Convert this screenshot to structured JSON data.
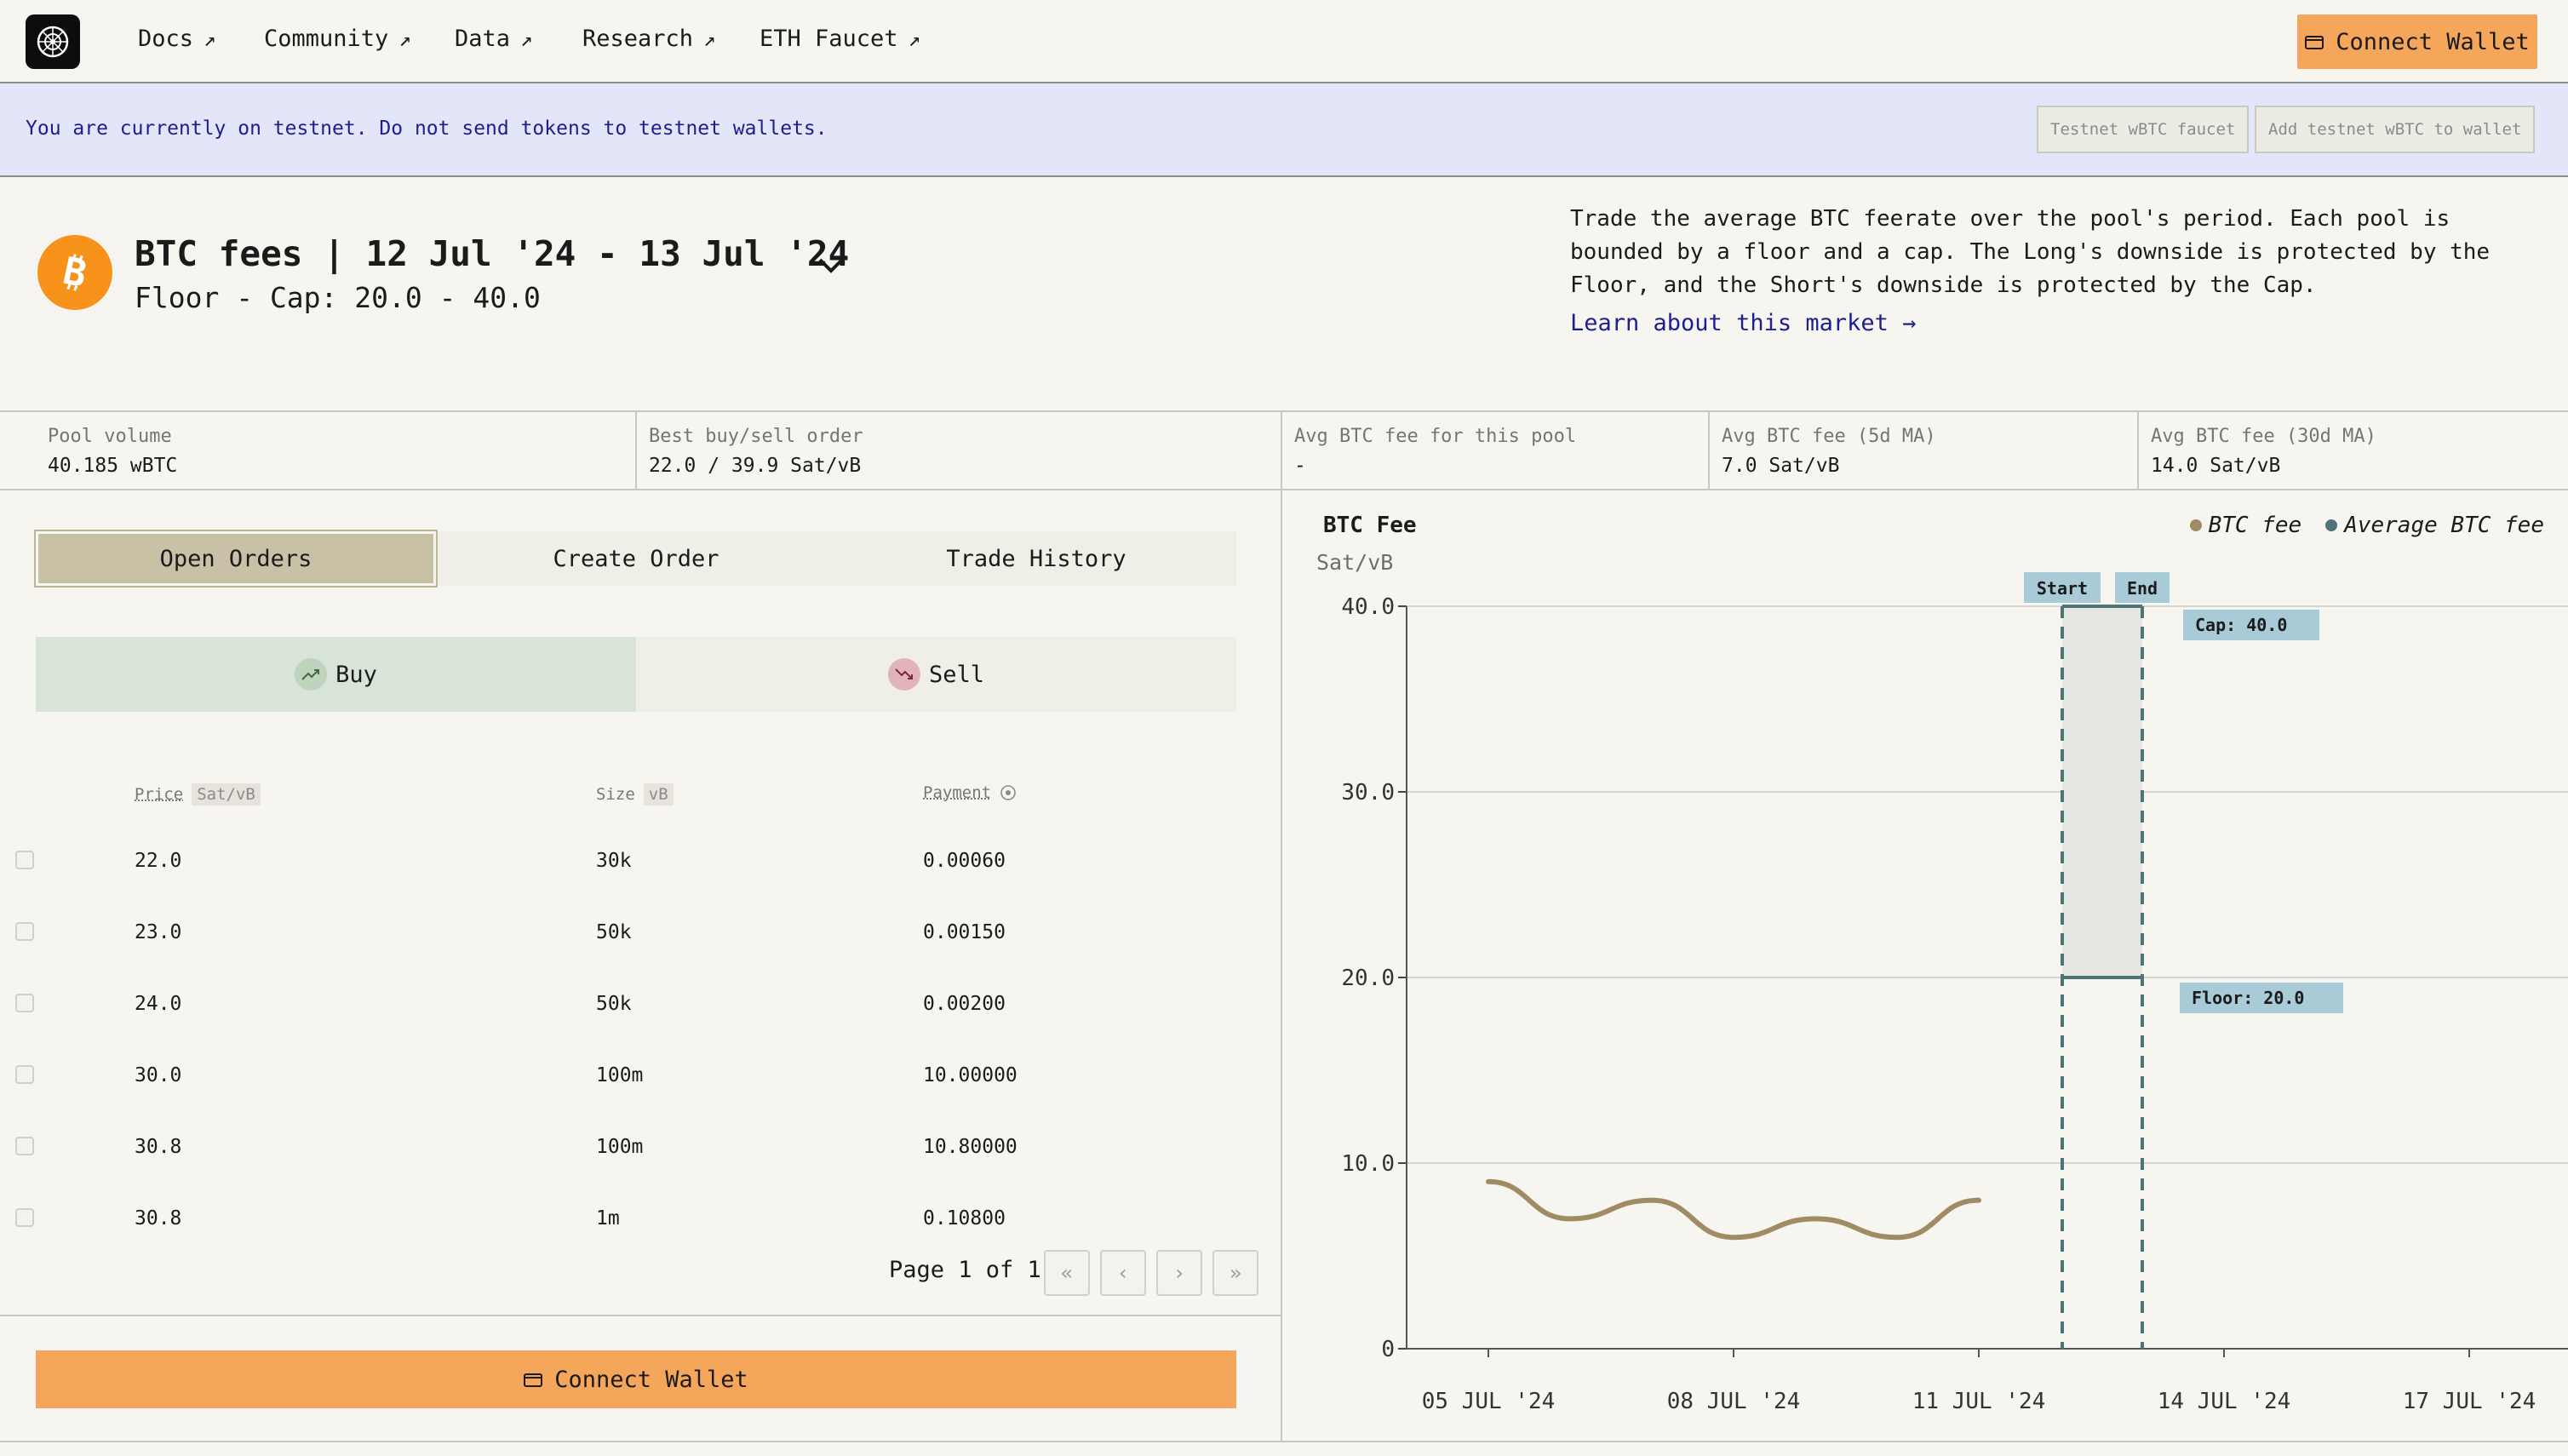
{
  "nav": {
    "links": [
      "Docs",
      "Community",
      "Data",
      "Research",
      "ETH Faucet"
    ],
    "connect_label": "Connect Wallet"
  },
  "banner": {
    "text": "You are currently on testnet. Do not send tokens to testnet wallets.",
    "faucet_label": "Testnet wBTC faucet",
    "add_token_label": "Add testnet wBTC to wallet"
  },
  "pool": {
    "title": "BTC fees | 12 Jul '24 - 13 Jul '24",
    "subtitle": "Floor - Cap: 20.0 - 40.0",
    "description": "Trade the average BTC feerate over the pool's period. Each pool is bounded by a floor and a cap. The Long's downside is protected by the Floor, and the Short's downside is protected by the Cap.",
    "learn_link": "Learn about this market →"
  },
  "stats": [
    {
      "label": "Pool volume",
      "value": "40.185 wBTC"
    },
    {
      "label": "Best buy/sell order",
      "value": "22.0 / 39.9 Sat/vB"
    },
    {
      "label": "Avg BTC fee for this pool",
      "value": "-"
    },
    {
      "label": "Avg BTC fee (5d MA)",
      "value": "7.0 Sat/vB"
    },
    {
      "label": "Avg BTC fee (30d MA)",
      "value": "14.0 Sat/vB"
    }
  ],
  "tabs": [
    "Open Orders",
    "Create Order",
    "Trade History"
  ],
  "active_tab": "Open Orders",
  "side": {
    "buy": "Buy",
    "sell": "Sell",
    "selected": "Buy"
  },
  "table": {
    "headers": [
      {
        "label": "Price",
        "unit": "Sat/vB"
      },
      {
        "label": "Size",
        "unit": "vB"
      },
      {
        "label": "Payment",
        "unit": ""
      }
    ],
    "rows": [
      {
        "price": "22.0",
        "size": "30k",
        "payment": "0.00060"
      },
      {
        "price": "23.0",
        "size": "50k",
        "payment": "0.00150"
      },
      {
        "price": "24.0",
        "size": "50k",
        "payment": "0.00200"
      },
      {
        "price": "30.0",
        "size": "100m",
        "payment": "10.00000"
      },
      {
        "price": "30.8",
        "size": "100m",
        "payment": "10.80000"
      },
      {
        "price": "30.8",
        "size": "1m",
        "payment": "0.10800"
      }
    ]
  },
  "pagination": {
    "text": "Page 1 of 1"
  },
  "bottom_connect_label": "Connect Wallet",
  "colors": {
    "accent": "#f4a65a",
    "btc_fee": "#a08c64",
    "average_fee": "#4f7477",
    "cap_floor_label": "#a9cbd8",
    "banner_bg": "#e3e5f9"
  },
  "chart_data": {
    "type": "line",
    "title": "BTC Fee",
    "ylabel": "Sat/vB",
    "ylim": [
      0,
      40
    ],
    "yticks": [
      "40.0",
      "30.0",
      "20.0",
      "10.0",
      "0"
    ],
    "xticks": [
      "05 JUL '24",
      "08 JUL '24",
      "11 JUL '24",
      "14 JUL '24",
      "17 JUL '24"
    ],
    "grid": true,
    "legend_position": "top-right",
    "series": [
      {
        "name": "BTC fee",
        "x": [
          "2024-07-05",
          "2024-07-06",
          "2024-07-07",
          "2024-07-08",
          "2024-07-09",
          "2024-07-10",
          "2024-07-11",
          "2024-07-12"
        ],
        "values": [
          9.0,
          7.0,
          8.0,
          6.0,
          7.0,
          6.0,
          8.0,
          null
        ]
      },
      {
        "name": "Average BTC fee",
        "x": [],
        "values": []
      }
    ],
    "pool_period": {
      "start_label": "Start",
      "end_label": "End",
      "start": "2024-07-12",
      "end": "2024-07-13"
    },
    "cap": {
      "label": "Cap: 40.0",
      "value": 40
    },
    "floor": {
      "label": "Floor: 20.0",
      "value": 20
    }
  }
}
